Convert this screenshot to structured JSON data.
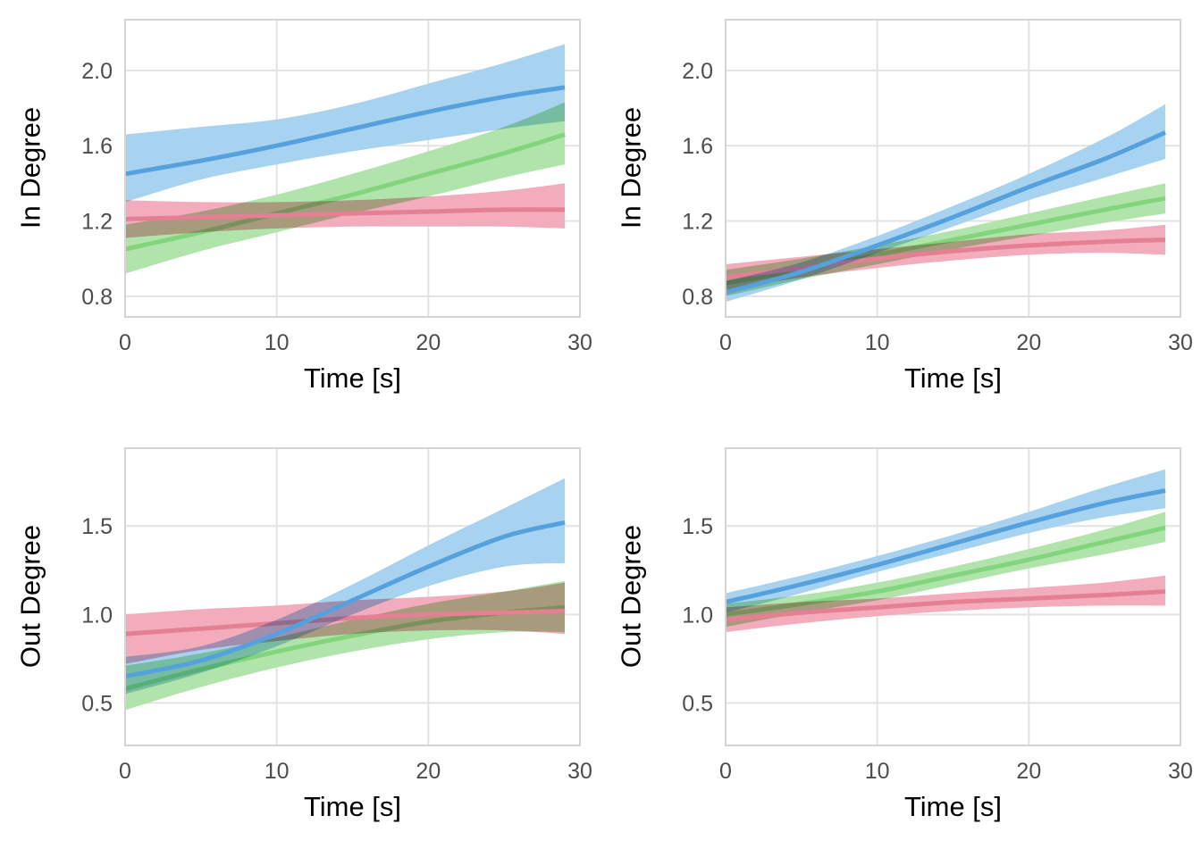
{
  "figure": {
    "background": "#ffffff",
    "description": "2x2 grid of smoothed degree-over-time curves with confidence ribbons"
  },
  "styles": {
    "grid_color": "#e3e3e3",
    "panel_border_color": "#d4d4d4",
    "tick_label_color": "#4d4d4d",
    "axis_title_color": "#000000",
    "series_blue": "#55a1dd",
    "series_green": "#82d57d",
    "series_red": "#e57f93"
  },
  "chart_data": [
    {
      "id": "in-degree-left",
      "type": "line",
      "xlabel": "Time [s]",
      "ylabel": "In Degree",
      "x": [
        0,
        5,
        10,
        15,
        20,
        25,
        29
      ],
      "xlim": [
        0,
        30
      ],
      "ylim": [
        0.69,
        2.27
      ],
      "xticks": [
        "0",
        "10",
        "20",
        "30"
      ],
      "xtick_values": [
        0,
        10,
        20,
        30
      ],
      "yticks": [
        "0.8",
        "1.2",
        "1.6",
        "2.0"
      ],
      "ytick_values": [
        0.8,
        1.2,
        1.6,
        2.0
      ],
      "grid": true,
      "legend": "none",
      "series": [
        {
          "name": "green",
          "color": "#82d57d",
          "band_color": "#b1e4ab",
          "mean": [
            1.05,
            1.14,
            1.24,
            1.34,
            1.45,
            1.56,
            1.66
          ],
          "lower": [
            0.92,
            1.04,
            1.14,
            1.24,
            1.33,
            1.43,
            1.5
          ],
          "upper": [
            1.18,
            1.25,
            1.34,
            1.45,
            1.57,
            1.7,
            1.83
          ]
        },
        {
          "name": "red",
          "color": "#e57f93",
          "band_color": "#f2acbb",
          "mean": [
            1.21,
            1.22,
            1.23,
            1.24,
            1.25,
            1.26,
            1.26
          ],
          "lower": [
            1.11,
            1.14,
            1.16,
            1.17,
            1.17,
            1.17,
            1.16
          ],
          "upper": [
            1.31,
            1.3,
            1.3,
            1.31,
            1.33,
            1.36,
            1.4
          ]
        },
        {
          "name": "blue",
          "color": "#55a1dd",
          "band_color": "#a8d3f0",
          "mean": [
            1.45,
            1.52,
            1.6,
            1.69,
            1.78,
            1.86,
            1.91
          ],
          "lower": [
            1.3,
            1.42,
            1.5,
            1.57,
            1.63,
            1.69,
            1.73
          ],
          "upper": [
            1.66,
            1.7,
            1.74,
            1.82,
            1.93,
            2.04,
            2.14
          ]
        }
      ]
    },
    {
      "id": "in-degree-right",
      "type": "line",
      "xlabel": "Time [s]",
      "ylabel": "In Degree",
      "x": [
        0,
        5,
        10,
        15,
        20,
        25,
        29
      ],
      "xlim": [
        0,
        30
      ],
      "ylim": [
        0.69,
        2.27
      ],
      "xticks": [
        "0",
        "10",
        "20",
        "30"
      ],
      "xtick_values": [
        0,
        10,
        20,
        30
      ],
      "yticks": [
        "0.8",
        "1.2",
        "1.6",
        "2.0"
      ],
      "ytick_values": [
        0.8,
        1.2,
        1.6,
        2.0
      ],
      "grid": true,
      "legend": "none",
      "series": [
        {
          "name": "green",
          "color": "#82d57d",
          "band_color": "#b1e4ab",
          "mean": [
            0.87,
            0.94,
            1.02,
            1.1,
            1.18,
            1.26,
            1.32
          ],
          "lower": [
            0.8,
            0.89,
            0.97,
            1.05,
            1.12,
            1.19,
            1.24
          ],
          "upper": [
            0.94,
            1.0,
            1.07,
            1.15,
            1.24,
            1.33,
            1.4
          ]
        },
        {
          "name": "red",
          "color": "#e57f93",
          "band_color": "#f2acbb",
          "mean": [
            0.9,
            0.95,
            1.0,
            1.04,
            1.07,
            1.09,
            1.1
          ],
          "lower": [
            0.83,
            0.9,
            0.95,
            0.99,
            1.02,
            1.03,
            1.02
          ],
          "upper": [
            0.97,
            1.01,
            1.05,
            1.09,
            1.13,
            1.15,
            1.18
          ]
        },
        {
          "name": "blue",
          "color": "#55a1dd",
          "band_color": "#a8d3f0",
          "mean": [
            0.82,
            0.93,
            1.07,
            1.22,
            1.38,
            1.53,
            1.67
          ],
          "lower": [
            0.77,
            0.89,
            1.03,
            1.17,
            1.31,
            1.43,
            1.53
          ],
          "upper": [
            0.88,
            0.98,
            1.12,
            1.28,
            1.45,
            1.64,
            1.82
          ]
        }
      ]
    },
    {
      "id": "out-degree-left",
      "type": "line",
      "xlabel": "Time [s]",
      "ylabel": "Out Degree",
      "x": [
        0,
        5,
        10,
        15,
        20,
        25,
        29
      ],
      "xlim": [
        0,
        30
      ],
      "ylim": [
        0.26,
        1.94
      ],
      "xticks": [
        "0",
        "10",
        "20",
        "30"
      ],
      "xtick_values": [
        0,
        10,
        20,
        30
      ],
      "yticks": [
        "0.5",
        "1.0",
        "1.5"
      ],
      "ytick_values": [
        0.5,
        1.0,
        1.5
      ],
      "grid": true,
      "legend": "none",
      "series": [
        {
          "name": "green",
          "color": "#82d57d",
          "band_color": "#b1e4ab",
          "mean": [
            0.58,
            0.69,
            0.79,
            0.88,
            0.96,
            1.01,
            1.04
          ],
          "lower": [
            0.46,
            0.59,
            0.7,
            0.79,
            0.86,
            0.9,
            0.9
          ],
          "upper": [
            0.71,
            0.78,
            0.87,
            0.97,
            1.06,
            1.13,
            1.19
          ]
        },
        {
          "name": "red",
          "color": "#e57f93",
          "band_color": "#f2acbb",
          "mean": [
            0.89,
            0.92,
            0.95,
            0.98,
            1.0,
            1.01,
            1.02
          ],
          "lower": [
            0.72,
            0.8,
            0.85,
            0.89,
            0.91,
            0.91,
            0.89
          ],
          "upper": [
            1.0,
            1.03,
            1.05,
            1.08,
            1.1,
            1.13,
            1.18
          ]
        },
        {
          "name": "blue",
          "color": "#55a1dd",
          "band_color": "#a8d3f0",
          "mean": [
            0.65,
            0.74,
            0.89,
            1.08,
            1.27,
            1.44,
            1.52
          ],
          "lower": [
            0.55,
            0.67,
            0.82,
            1.0,
            1.16,
            1.27,
            1.29
          ],
          "upper": [
            0.76,
            0.82,
            0.97,
            1.17,
            1.39,
            1.6,
            1.77
          ]
        }
      ]
    },
    {
      "id": "out-degree-right",
      "type": "line",
      "xlabel": "Time [s]",
      "ylabel": "Out Degree",
      "x": [
        0,
        5,
        10,
        15,
        20,
        25,
        29
      ],
      "xlim": [
        0,
        30
      ],
      "ylim": [
        0.26,
        1.94
      ],
      "xticks": [
        "0",
        "10",
        "20",
        "30"
      ],
      "xtick_values": [
        0,
        10,
        20,
        30
      ],
      "yticks": [
        "0.5",
        "1.0",
        "1.5"
      ],
      "ytick_values": [
        0.5,
        1.0,
        1.5
      ],
      "grid": true,
      "legend": "none",
      "series": [
        {
          "name": "green",
          "color": "#82d57d",
          "band_color": "#b1e4ab",
          "mean": [
            1.0,
            1.06,
            1.13,
            1.22,
            1.31,
            1.41,
            1.49
          ],
          "lower": [
            0.93,
            1.01,
            1.08,
            1.17,
            1.26,
            1.34,
            1.41
          ],
          "upper": [
            1.06,
            1.11,
            1.18,
            1.27,
            1.37,
            1.48,
            1.58
          ]
        },
        {
          "name": "red",
          "color": "#e57f93",
          "band_color": "#f2acbb",
          "mean": [
            0.97,
            1.01,
            1.04,
            1.07,
            1.09,
            1.11,
            1.13
          ],
          "lower": [
            0.9,
            0.95,
            0.99,
            1.02,
            1.04,
            1.05,
            1.05
          ],
          "upper": [
            1.04,
            1.07,
            1.09,
            1.12,
            1.15,
            1.18,
            1.22
          ]
        },
        {
          "name": "blue",
          "color": "#55a1dd",
          "band_color": "#a8d3f0",
          "mean": [
            1.07,
            1.17,
            1.28,
            1.4,
            1.52,
            1.63,
            1.7
          ],
          "lower": [
            1.01,
            1.12,
            1.24,
            1.35,
            1.46,
            1.55,
            1.6
          ],
          "upper": [
            1.12,
            1.22,
            1.33,
            1.45,
            1.58,
            1.72,
            1.82
          ]
        }
      ]
    }
  ]
}
